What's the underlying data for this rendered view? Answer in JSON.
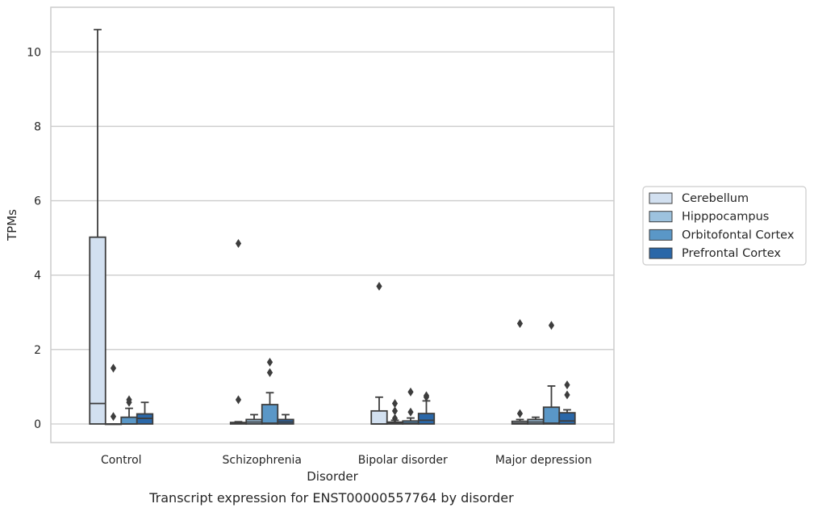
{
  "caption": "Transcript expression for ENST00000557764 by disorder",
  "chart_data": {
    "type": "box",
    "xlabel": "Disorder",
    "ylabel": "TPMs",
    "categories": [
      "Control",
      "Schizophrenia",
      "Bipolar disorder",
      "Major depression"
    ],
    "ylim": [
      -0.5,
      11.2
    ],
    "yticks": [
      0,
      2,
      4,
      6,
      8,
      10
    ],
    "grid": true,
    "legend_position": "right",
    "series": [
      {
        "name": "Cerebellum",
        "color": "#d2e0f0",
        "boxes": [
          {
            "q1": 0.0,
            "median": 0.55,
            "q3": 5.02,
            "whislo": 0.0,
            "whishi": 10.6,
            "fliers": []
          },
          {
            "q1": 0.0,
            "median": 0.02,
            "q3": 0.04,
            "whislo": 0.0,
            "whishi": 0.06,
            "fliers": [
              4.85,
              0.65
            ]
          },
          {
            "q1": 0.0,
            "median": 0.0,
            "q3": 0.35,
            "whislo": 0.0,
            "whishi": 0.72,
            "fliers": [
              3.7
            ]
          },
          {
            "q1": 0.0,
            "median": 0.02,
            "q3": 0.07,
            "whislo": 0.0,
            "whishi": 0.12,
            "fliers": [
              2.7,
              0.28
            ]
          }
        ]
      },
      {
        "name": "Hipppocampus",
        "color": "#9dc2de",
        "boxes": [
          {
            "q1": 0.0,
            "median": 0.0,
            "q3": 0.0,
            "whislo": 0.0,
            "whishi": 0.0,
            "fliers": [
              1.5,
              0.2
            ]
          },
          {
            "q1": 0.0,
            "median": 0.05,
            "q3": 0.12,
            "whislo": 0.0,
            "whishi": 0.25,
            "fliers": []
          },
          {
            "q1": 0.0,
            "median": 0.02,
            "q3": 0.05,
            "whislo": 0.0,
            "whishi": 0.1,
            "fliers": [
              0.55,
              0.35,
              0.15
            ]
          },
          {
            "q1": 0.0,
            "median": 0.05,
            "q3": 0.12,
            "whislo": 0.0,
            "whishi": 0.18,
            "fliers": []
          }
        ]
      },
      {
        "name": "Orbitofontal Cortex",
        "color": "#5a97c7",
        "boxes": [
          {
            "q1": 0.0,
            "median": 0.0,
            "q3": 0.18,
            "whislo": 0.0,
            "whishi": 0.42,
            "fliers": [
              0.65,
              0.58
            ]
          },
          {
            "q1": 0.0,
            "median": 0.02,
            "q3": 0.52,
            "whislo": 0.0,
            "whishi": 0.84,
            "fliers": [
              1.66,
              1.38
            ]
          },
          {
            "q1": 0.0,
            "median": 0.02,
            "q3": 0.08,
            "whislo": 0.0,
            "whishi": 0.16,
            "fliers": [
              0.86,
              0.32
            ]
          },
          {
            "q1": 0.0,
            "median": 0.02,
            "q3": 0.45,
            "whislo": 0.0,
            "whishi": 1.02,
            "fliers": [
              2.65
            ]
          }
        ]
      },
      {
        "name": "Prefrontal Cortex",
        "color": "#2a67a8",
        "boxes": [
          {
            "q1": 0.0,
            "median": 0.15,
            "q3": 0.27,
            "whislo": 0.0,
            "whishi": 0.58,
            "fliers": []
          },
          {
            "q1": 0.0,
            "median": 0.05,
            "q3": 0.12,
            "whislo": 0.0,
            "whishi": 0.25,
            "fliers": []
          },
          {
            "q1": 0.0,
            "median": 0.1,
            "q3": 0.28,
            "whislo": 0.0,
            "whishi": 0.62,
            "fliers": [
              0.76,
              0.72
            ]
          },
          {
            "q1": 0.0,
            "median": 0.08,
            "q3": 0.3,
            "whislo": 0.0,
            "whishi": 0.38,
            "fliers": [
              1.05,
              0.78
            ]
          }
        ]
      }
    ]
  }
}
